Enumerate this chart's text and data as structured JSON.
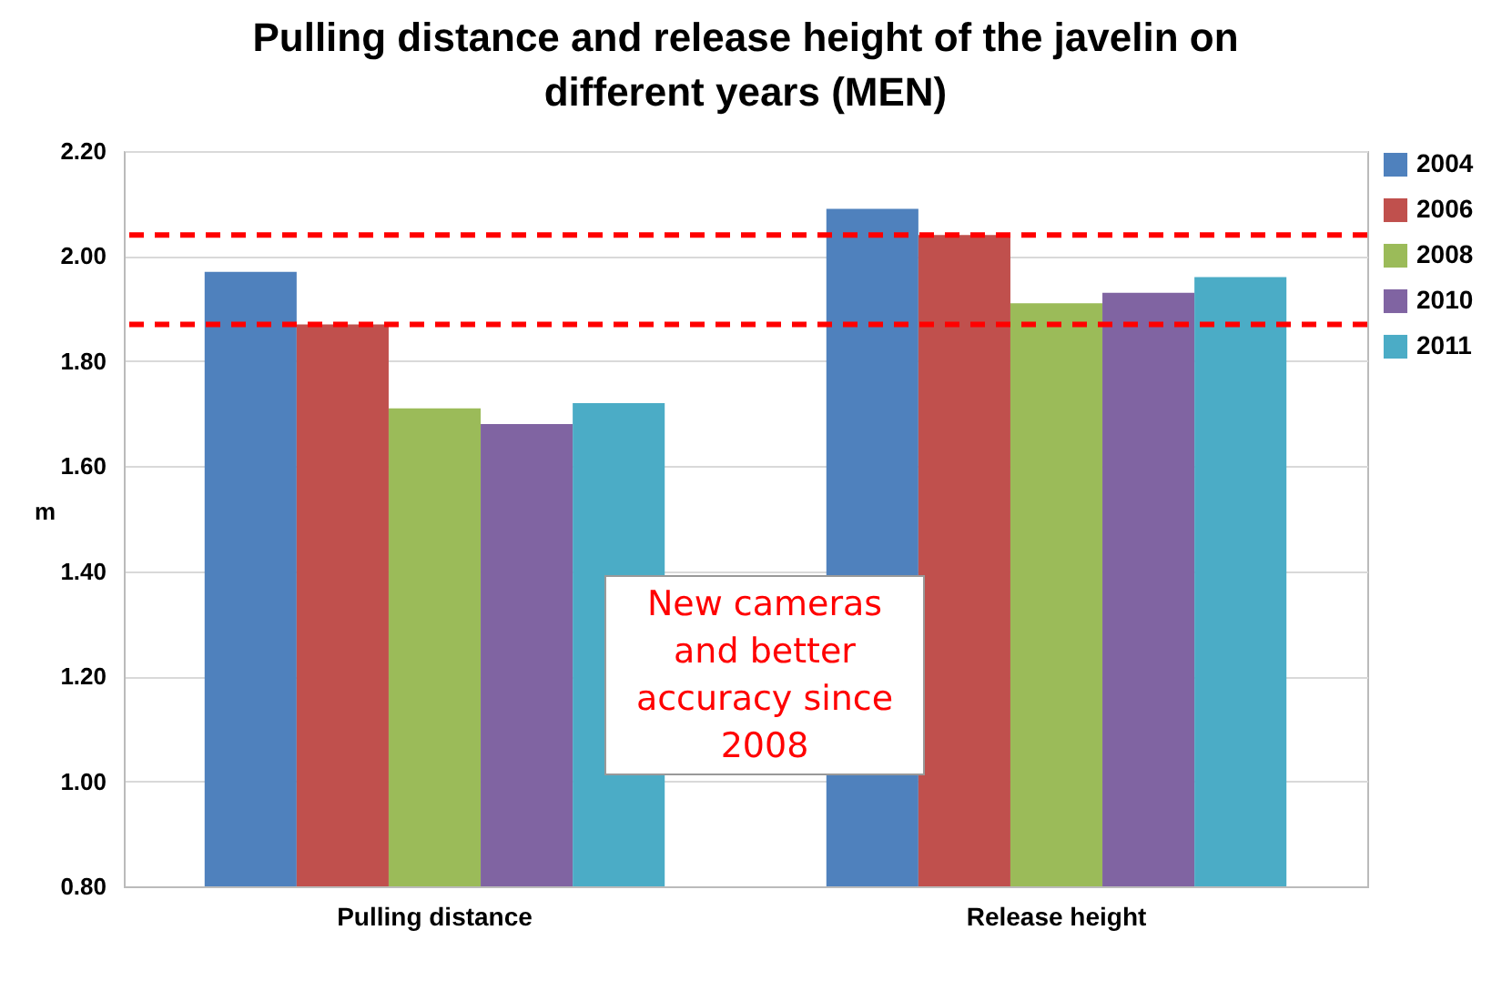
{
  "chart_data": {
    "type": "bar",
    "title": [
      "Pulling distance and release height of the javelin on",
      "different years (MEN)"
    ],
    "ylabel": "m",
    "categories": [
      "Pulling distance",
      "Release height"
    ],
    "series": [
      {
        "name": "2004",
        "color": "#4f81bd",
        "values": [
          1.97,
          2.09
        ]
      },
      {
        "name": "2006",
        "color": "#c0504d",
        "values": [
          1.87,
          2.04
        ]
      },
      {
        "name": "2008",
        "color": "#9bbb59",
        "values": [
          1.71,
          1.91
        ]
      },
      {
        "name": "2010",
        "color": "#8064a2",
        "values": [
          1.68,
          1.93
        ]
      },
      {
        "name": "2011",
        "color": "#4bacc6",
        "values": [
          1.72,
          1.96
        ]
      }
    ],
    "ylim": [
      0.8,
      2.2
    ],
    "yticks": [
      {
        "value": 0.8,
        "label": "0.80"
      },
      {
        "value": 1.0,
        "label": "1.00"
      },
      {
        "value": 1.2,
        "label": "1.20"
      },
      {
        "value": 1.4,
        "label": "1.40"
      },
      {
        "value": 1.6,
        "label": "1.60"
      },
      {
        "value": 1.8,
        "label": "1.80"
      },
      {
        "value": 2.0,
        "label": "2.00"
      },
      {
        "value": 2.2,
        "label": "2.20"
      }
    ],
    "grid": "y",
    "legend": "right",
    "ref_lines": [
      {
        "axis": "y",
        "value": 1.87,
        "color": "#ff0000",
        "line_style": "dashed"
      },
      {
        "axis": "y",
        "value": 2.04,
        "color": "#ff0000",
        "line_style": "dashed"
      }
    ],
    "annotations": [
      "New cameras and better accuracy since 2008"
    ]
  }
}
